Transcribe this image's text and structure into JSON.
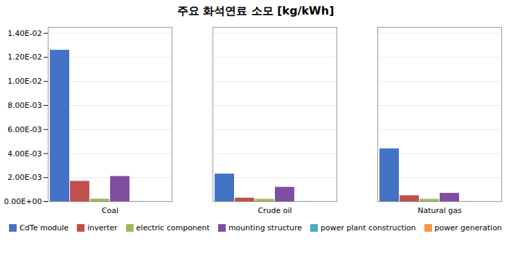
{
  "chart_data": {
    "type": "bar",
    "title": "주요  화석연료  소모  [kg/kWh]",
    "categories": [
      "Coal",
      "Crude oil",
      "Natural gas"
    ],
    "series": [
      {
        "name": "CdTe module",
        "color": "#4472C4",
        "values": [
          0.0126,
          0.0023,
          0.0044
        ]
      },
      {
        "name": "inverter",
        "color": "#C0504D",
        "values": [
          0.0017,
          0.0003,
          0.0005
        ]
      },
      {
        "name": "electric component",
        "color": "#9BBB59",
        "values": [
          0.00022,
          0.0002,
          0.0002
        ]
      },
      {
        "name": "mounting structure",
        "color": "#7F4EA0",
        "values": [
          0.0021,
          0.0012,
          0.0007
        ]
      },
      {
        "name": "power plant construction",
        "color": "#4BACC6",
        "values": [
          1e-05,
          1e-05,
          1e-05
        ]
      },
      {
        "name": "power generation",
        "color": "#F79646",
        "values": [
          1e-05,
          1e-05,
          1e-05
        ]
      }
    ],
    "ylim": [
      0,
      0.0145
    ],
    "yticks": [
      {
        "value": 0.0,
        "label": "0.00E+00"
      },
      {
        "value": 0.002,
        "label": "2.00E-03"
      },
      {
        "value": 0.004,
        "label": "4.00E-03"
      },
      {
        "value": 0.006,
        "label": "6.00E-03"
      },
      {
        "value": 0.008,
        "label": "8.00E-03"
      },
      {
        "value": 0.01,
        "label": "1.00E-02"
      },
      {
        "value": 0.012,
        "label": "1.20E-02"
      },
      {
        "value": 0.014,
        "label": "1.40E-02"
      }
    ],
    "grid": true,
    "legend": "bottom"
  }
}
